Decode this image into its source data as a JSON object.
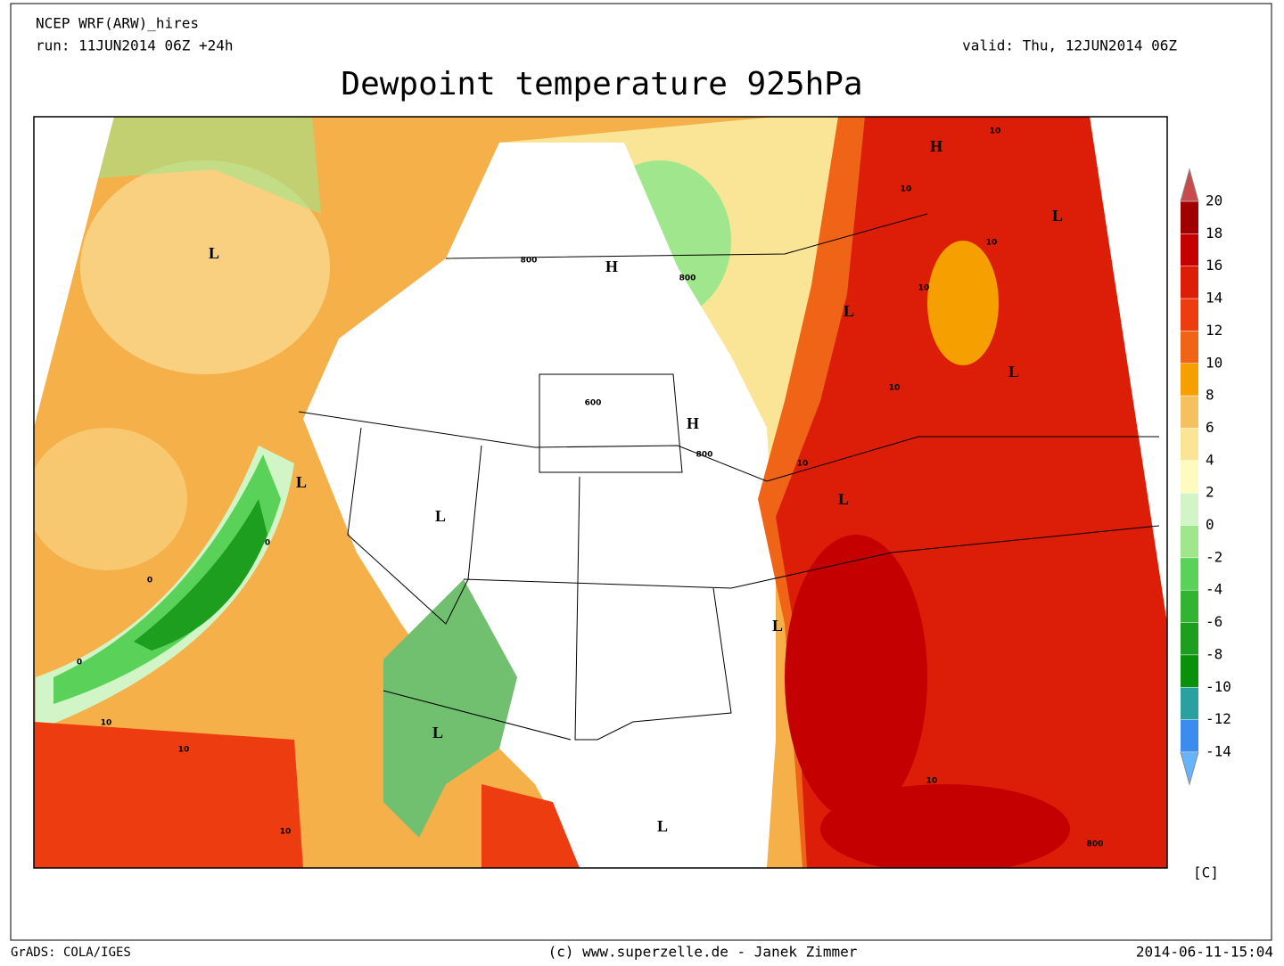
{
  "header": {
    "model": "NCEP WRF(ARW)_hires",
    "run": "run: 11JUN2014 06Z +24h",
    "valid": "valid: Thu, 12JUN2014 06Z",
    "title": "Dewpoint temperature 925hPa"
  },
  "map": {
    "pressure_centers": [
      "L",
      "H",
      "L",
      "L",
      "H",
      "L",
      "L",
      "H",
      "L",
      "L",
      "L",
      "L",
      "L"
    ],
    "contour_labels": [
      "800",
      "800",
      "600",
      "800",
      "10",
      "10",
      "10",
      "10",
      "10",
      "10",
      "10",
      "0",
      "0",
      "0",
      "10",
      "10",
      "10",
      "800"
    ]
  },
  "colorbar": {
    "levels": [
      20,
      18,
      16,
      14,
      12,
      10,
      8,
      6,
      4,
      2,
      0,
      -2,
      -4,
      -6,
      -8,
      -10,
      -12,
      -14
    ],
    "colors": [
      "#c84a4a",
      "#a00000",
      "#c40000",
      "#dc1e08",
      "#ec3c10",
      "#f06418",
      "#f5a000",
      "#f5c060",
      "#fae496",
      "#fffac0",
      "#d2f5c8",
      "#a0e68c",
      "#5ad25a",
      "#32b432",
      "#1e9e1e",
      "#0a900a",
      "#2aa0a0",
      "#3c8cf0",
      "#64b4ff"
    ],
    "unit": "[C]"
  },
  "footer": {
    "left": "GrADS: COLA/IGES",
    "center": "(c) www.superzelle.de - Janek Zimmer",
    "right": "2014-06-11-15:04"
  }
}
